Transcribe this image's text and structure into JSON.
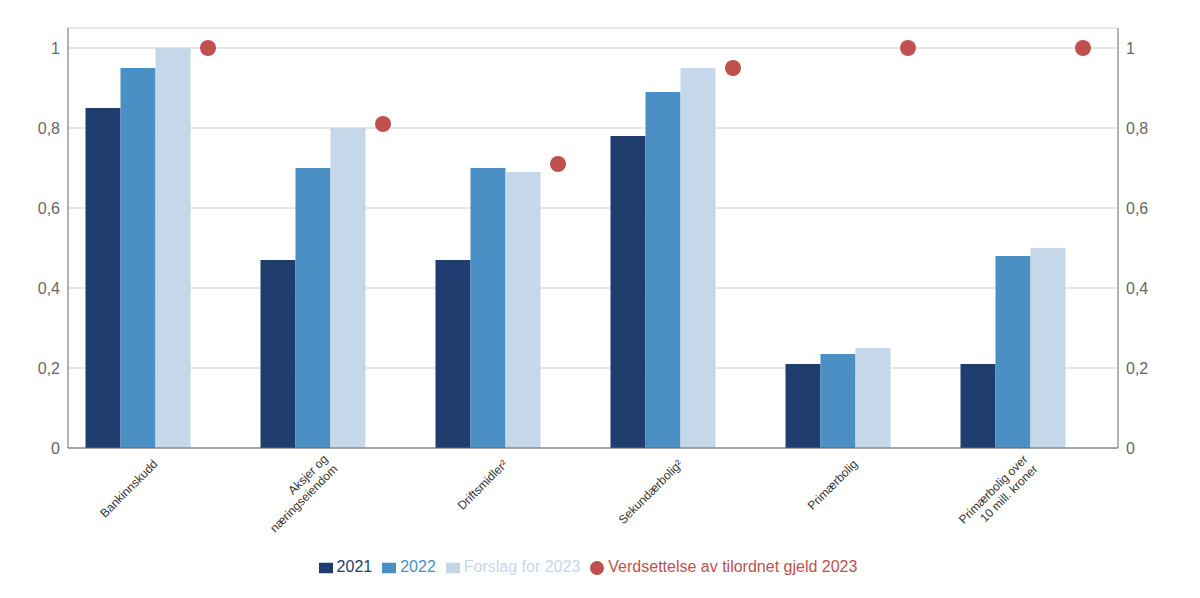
{
  "chart_data": {
    "type": "bar",
    "categories": [
      "Bankinnskudd",
      "Aksjer og\nnæringseiendom",
      "Driftsmidler²",
      "Sekundærbolig²",
      "Primærbolig",
      "Primærbolig over\n10 mill. kroner"
    ],
    "series": [
      {
        "name": "2021",
        "color": "#1f3d6e",
        "values": [
          0.85,
          0.47,
          0.47,
          0.78,
          0.21,
          0.21
        ]
      },
      {
        "name": "2022",
        "color": "#4a90c4",
        "values": [
          0.95,
          0.7,
          0.7,
          0.89,
          0.235,
          0.48
        ]
      },
      {
        "name": "Forslag for 2023",
        "color": "#c5d8ea",
        "values": [
          1.0,
          0.8,
          0.69,
          0.95,
          0.25,
          0.5
        ]
      },
      {
        "name": "Verdsettelse av tilordnet gjeld 2023",
        "type": "scatter",
        "marker": "circle",
        "color": "#c0504d",
        "values": [
          1.0,
          0.81,
          0.71,
          0.95,
          1.0,
          1.0
        ]
      }
    ],
    "ylim": [
      0,
      1.05
    ],
    "yticks": [
      0,
      {
        "value": 0.2,
        "label": "0,2"
      },
      {
        "value": 0.4,
        "label": "0,4"
      },
      {
        "value": 0.6,
        "label": "0,6"
      },
      {
        "value": 0.8,
        "label": "0,8"
      },
      1
    ],
    "y2lim": [
      0,
      1.05
    ],
    "y2ticks": [
      0,
      {
        "value": 0.2,
        "label": "0,2"
      },
      {
        "value": 0.4,
        "label": "0,4"
      },
      {
        "value": 0.6,
        "label": "0,6"
      },
      {
        "value": 0.8,
        "label": "0,8"
      },
      1
    ],
    "grid": true,
    "legend": "bottom"
  }
}
